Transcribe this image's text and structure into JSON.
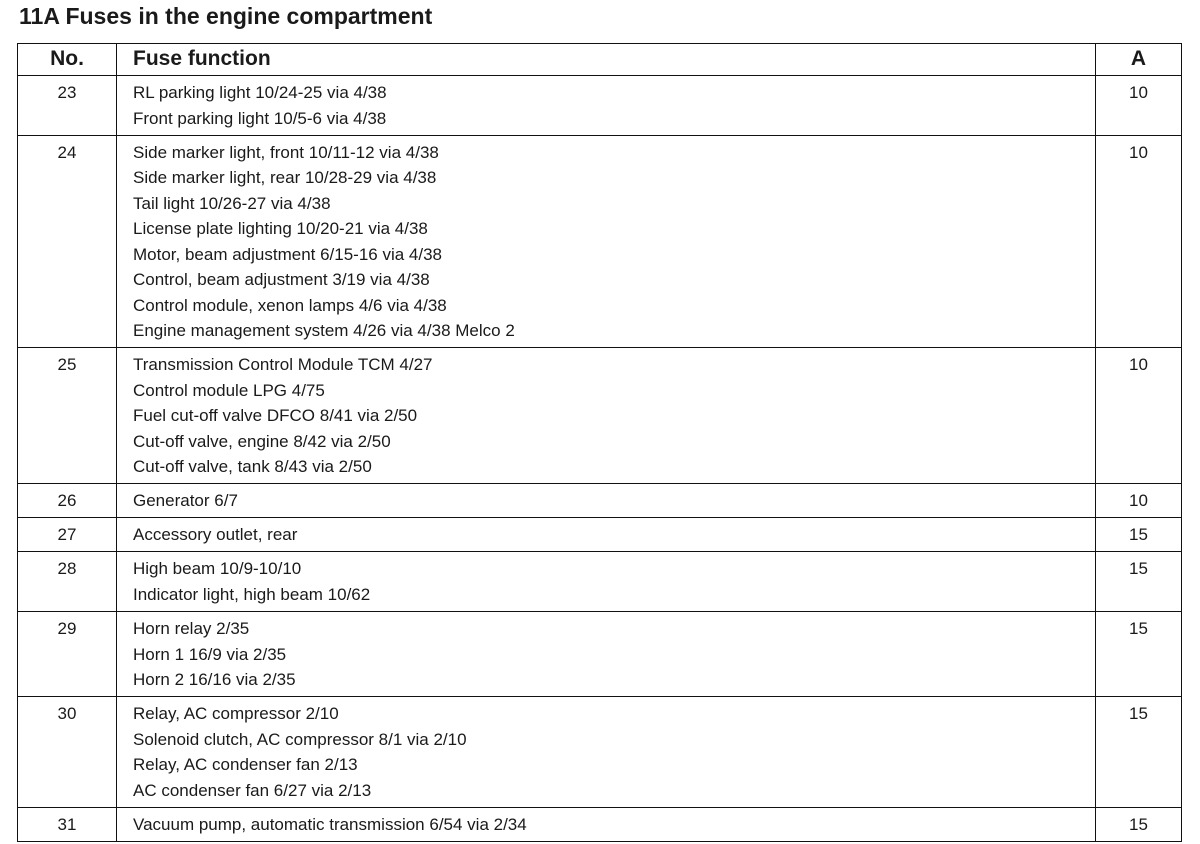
{
  "title": "11A Fuses in the engine compartment",
  "table": {
    "header": [
      "No.",
      "Fuse function",
      "A"
    ],
    "rows": [
      {
        "no": "23",
        "lines": [
          "RL parking light 10/24-25 via 4/38",
          "Front parking light 10/5-6 via 4/38"
        ],
        "amps": "10"
      },
      {
        "no": "24",
        "lines": [
          "Side marker light, front 10/11-12 via 4/38",
          "Side marker light, rear 10/28-29 via 4/38",
          "Tail light 10/26-27 via 4/38",
          "License plate lighting 10/20-21 via 4/38",
          "Motor, beam adjustment 6/15-16 via 4/38",
          "Control, beam adjustment 3/19 via 4/38",
          "Control module, xenon lamps 4/6 via 4/38",
          "Engine management system 4/26 via 4/38 Melco 2"
        ],
        "amps": "10"
      },
      {
        "no": "25",
        "lines": [
          "Transmission Control Module TCM 4/27",
          "Control module LPG 4/75",
          "Fuel cut-off valve DFCO 8/41 via 2/50",
          "Cut-off valve, engine 8/42 via 2/50",
          "Cut-off valve, tank 8/43 via 2/50"
        ],
        "amps": "10"
      },
      {
        "no": "26",
        "lines": [
          "Generator 6/7"
        ],
        "amps": "10"
      },
      {
        "no": "27",
        "lines": [
          "Accessory outlet, rear"
        ],
        "amps": "15"
      },
      {
        "no": "28",
        "lines": [
          "High beam 10/9-10/10",
          "Indicator light, high beam 10/62"
        ],
        "amps": "15"
      },
      {
        "no": "29",
        "lines": [
          "Horn relay 2/35",
          "Horn 1 16/9 via 2/35",
          "Horn 2 16/16 via 2/35"
        ],
        "amps": "15"
      },
      {
        "no": "30",
        "lines": [
          "Relay, AC compressor 2/10",
          "Solenoid clutch, AC compressor 8/1 via 2/10",
          "Relay, AC condenser fan 2/13",
          "AC condenser fan 6/27 via 2/13"
        ],
        "amps": "15"
      },
      {
        "no": "31",
        "lines": [
          "Vacuum pump, automatic transmission 6/54 via 2/34"
        ],
        "amps": "15"
      }
    ]
  }
}
